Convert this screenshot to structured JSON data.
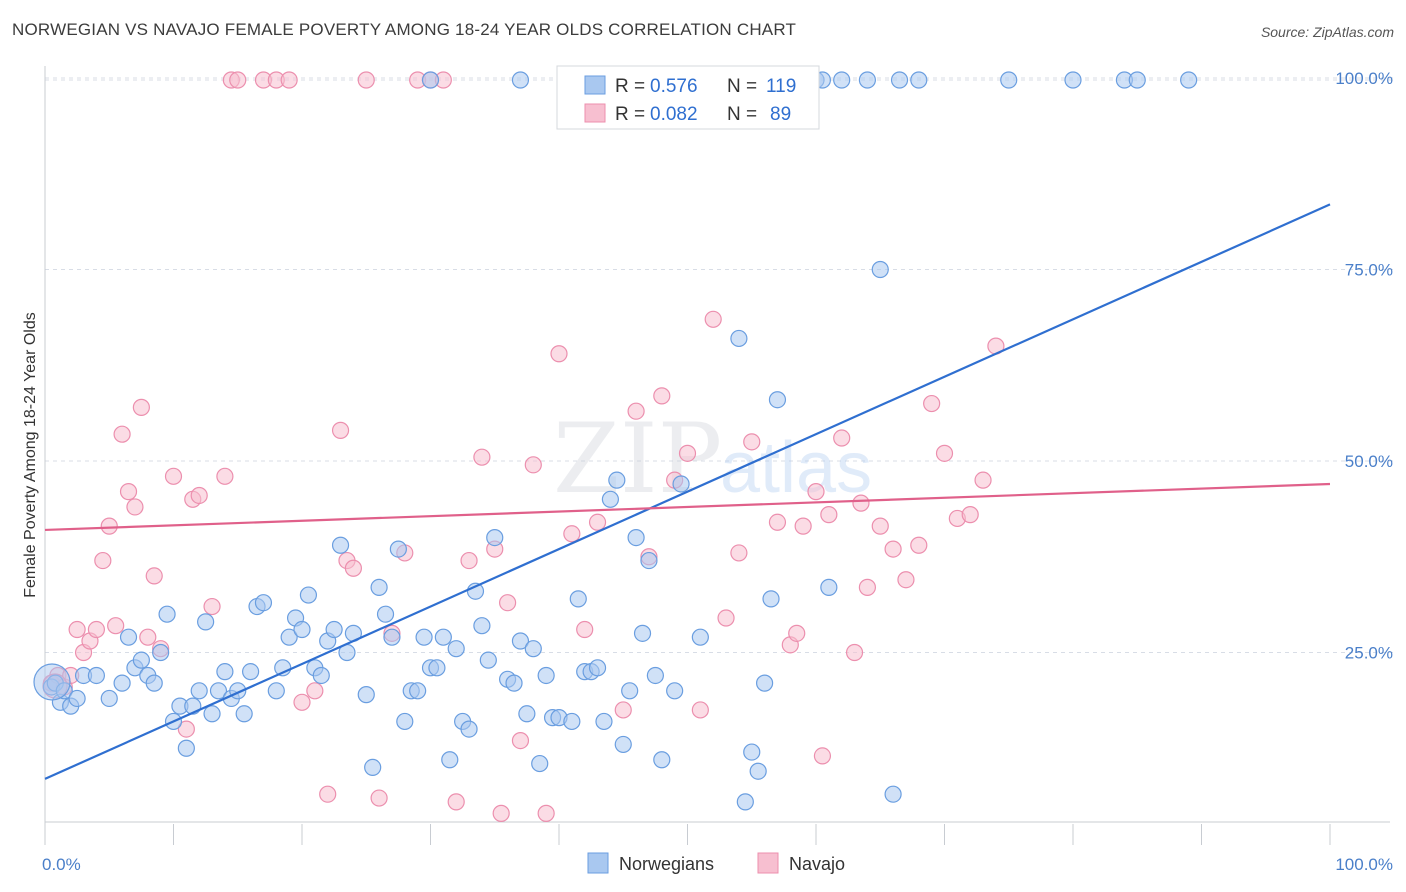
{
  "title": "NORWEGIAN VS NAVAJO FEMALE POVERTY AMONG 18-24 YEAR OLDS CORRELATION CHART",
  "source": "Source: ZipAtlas.com",
  "watermark": {
    "zip": "ZIP",
    "atlas": "atlas"
  },
  "colors": {
    "blue_fill": "#a9c8f0",
    "blue_stroke": "#6a9ee0",
    "blue_line": "#2f6fd0",
    "pink_fill": "#f7bfd0",
    "pink_stroke": "#ec8fae",
    "pink_line": "#e0608a",
    "grid": "#d8dde6",
    "axis_label": "#4a7fc9"
  },
  "legend_box": [
    {
      "r_label": "R =",
      "r_value": "0.576",
      "n_label": "N =",
      "n_value": "119",
      "series": "blue"
    },
    {
      "r_label": "R =",
      "r_value": "0.082",
      "n_label": "N =",
      "n_value": "89",
      "series": "pink"
    }
  ],
  "bottom_legend": [
    {
      "label": "Norwegians",
      "series": "blue"
    },
    {
      "label": "Navajo",
      "series": "pink"
    }
  ],
  "chart_data": {
    "type": "scatter",
    "title": "NORWEGIAN VS NAVAJO FEMALE POVERTY AMONG 18-24 YEAR OLDS CORRELATION CHART",
    "xlabel": "",
    "ylabel": "Female Poverty Among 18-24 Year Olds",
    "xlim": [
      0,
      100
    ],
    "ylim": [
      0,
      102
    ],
    "x_tick_labels": [
      "0.0%",
      "100.0%"
    ],
    "y_tick_labels": [
      "25.0%",
      "50.0%",
      "75.0%",
      "100.0%"
    ],
    "y_ticks": [
      25,
      50,
      75,
      100
    ],
    "grid": true,
    "legend": "top-center",
    "series": [
      {
        "name": "Norwegians",
        "color": "blue",
        "r": 0.576,
        "n": 119,
        "trend": {
          "x": [
            0,
            100
          ],
          "y": [
            8.5,
            83.5
          ]
        },
        "points": [
          [
            0.5,
            20.5
          ],
          [
            0.8,
            21
          ],
          [
            1.2,
            18.5
          ],
          [
            1.5,
            20
          ],
          [
            2,
            18
          ],
          [
            2.5,
            19
          ],
          [
            3,
            22
          ],
          [
            4,
            22
          ],
          [
            5,
            19
          ],
          [
            6,
            21
          ],
          [
            6.5,
            27
          ],
          [
            7,
            23
          ],
          [
            7.5,
            24
          ],
          [
            8,
            22
          ],
          [
            8.5,
            21
          ],
          [
            9,
            25
          ],
          [
            9.5,
            30
          ],
          [
            10,
            16
          ],
          [
            10.5,
            18
          ],
          [
            11,
            12.5
          ],
          [
            11.5,
            18
          ],
          [
            12,
            20
          ],
          [
            12.5,
            29
          ],
          [
            13,
            17
          ],
          [
            13.5,
            20
          ],
          [
            14,
            22.5
          ],
          [
            14.5,
            19
          ],
          [
            15,
            20
          ],
          [
            15.5,
            17
          ],
          [
            16,
            22.5
          ],
          [
            16.5,
            31
          ],
          [
            17,
            31.5
          ],
          [
            18,
            20
          ],
          [
            18.5,
            23
          ],
          [
            19,
            27
          ],
          [
            19.5,
            29.5
          ],
          [
            20,
            28
          ],
          [
            20.5,
            32.5
          ],
          [
            21,
            23
          ],
          [
            21.5,
            22
          ],
          [
            22,
            26.5
          ],
          [
            22.5,
            28
          ],
          [
            23,
            39
          ],
          [
            23.5,
            25
          ],
          [
            24,
            27.5
          ],
          [
            25,
            19.5
          ],
          [
            25.5,
            10
          ],
          [
            26,
            33.5
          ],
          [
            26.5,
            30
          ],
          [
            27,
            27
          ],
          [
            27.5,
            38.5
          ],
          [
            28,
            16
          ],
          [
            28.5,
            20
          ],
          [
            29,
            20
          ],
          [
            29.5,
            27
          ],
          [
            30,
            23
          ],
          [
            30.5,
            23
          ],
          [
            31,
            27
          ],
          [
            31.5,
            11
          ],
          [
            32,
            25.5
          ],
          [
            32.5,
            16
          ],
          [
            33,
            15
          ],
          [
            33.5,
            33
          ],
          [
            34,
            28.5
          ],
          [
            34.5,
            24
          ],
          [
            35,
            40
          ],
          [
            36,
            21.5
          ],
          [
            36.5,
            21
          ],
          [
            37,
            26.5
          ],
          [
            37.5,
            17
          ],
          [
            38,
            25.5
          ],
          [
            38.5,
            10.5
          ],
          [
            39,
            22
          ],
          [
            39.5,
            16.5
          ],
          [
            40,
            16.5
          ],
          [
            41,
            16
          ],
          [
            41.5,
            32
          ],
          [
            42,
            22.5
          ],
          [
            42.5,
            22.5
          ],
          [
            43,
            23
          ],
          [
            43.5,
            16
          ],
          [
            44,
            45
          ],
          [
            44.5,
            47.5
          ],
          [
            45,
            13
          ],
          [
            45.5,
            20
          ],
          [
            46,
            40
          ],
          [
            46.5,
            27.5
          ],
          [
            47,
            37
          ],
          [
            47.5,
            22
          ],
          [
            48,
            11
          ],
          [
            49,
            20
          ],
          [
            49.5,
            47
          ],
          [
            51,
            27
          ],
          [
            54,
            66
          ],
          [
            54.5,
            5.5
          ],
          [
            55,
            12
          ],
          [
            55.5,
            9.5
          ],
          [
            56,
            21
          ],
          [
            56.5,
            32
          ],
          [
            57,
            58
          ],
          [
            58,
            100
          ],
          [
            60,
            100
          ],
          [
            60.5,
            100
          ],
          [
            61,
            33.5
          ],
          [
            62,
            100
          ],
          [
            64,
            100
          ],
          [
            65,
            75
          ],
          [
            66,
            6.5
          ],
          [
            66.5,
            100
          ],
          [
            68,
            100
          ],
          [
            75,
            100
          ],
          [
            80,
            100
          ],
          [
            84,
            100
          ],
          [
            85,
            100
          ],
          [
            89,
            100
          ],
          [
            44,
            100
          ],
          [
            51,
            100
          ],
          [
            37,
            100
          ],
          [
            30,
            100
          ]
        ]
      },
      {
        "name": "Navajo",
        "color": "pink",
        "r": 0.082,
        "n": 89,
        "trend": {
          "x": [
            0,
            100
          ],
          "y": [
            41,
            47
          ]
        },
        "points": [
          [
            0.5,
            21
          ],
          [
            1,
            22
          ],
          [
            1.5,
            20.5
          ],
          [
            2,
            22
          ],
          [
            2.5,
            28
          ],
          [
            3,
            25
          ],
          [
            3.5,
            26.5
          ],
          [
            4,
            28
          ],
          [
            4.5,
            37
          ],
          [
            5,
            41.5
          ],
          [
            5.5,
            28.5
          ],
          [
            6,
            53.5
          ],
          [
            6.5,
            46
          ],
          [
            7,
            44
          ],
          [
            7.5,
            57
          ],
          [
            8,
            27
          ],
          [
            8.5,
            35
          ],
          [
            9,
            25.5
          ],
          [
            10,
            48
          ],
          [
            11,
            15
          ],
          [
            11.5,
            45
          ],
          [
            12,
            45.5
          ],
          [
            13,
            31
          ],
          [
            14,
            48
          ],
          [
            14.5,
            100
          ],
          [
            15,
            100
          ],
          [
            17,
            100
          ],
          [
            18,
            100
          ],
          [
            19,
            100
          ],
          [
            20,
            18.5
          ],
          [
            21,
            20
          ],
          [
            22,
            6.5
          ],
          [
            23,
            54
          ],
          [
            23.5,
            37
          ],
          [
            24,
            36
          ],
          [
            25,
            100
          ],
          [
            26,
            6
          ],
          [
            27,
            27.5
          ],
          [
            28,
            38
          ],
          [
            29,
            100
          ],
          [
            30,
            100
          ],
          [
            31,
            100
          ],
          [
            32,
            5.5
          ],
          [
            33,
            37
          ],
          [
            34,
            50.5
          ],
          [
            35,
            38.5
          ],
          [
            36,
            31.5
          ],
          [
            37,
            13.5
          ],
          [
            38,
            49.5
          ],
          [
            39,
            4
          ],
          [
            40,
            64
          ],
          [
            41,
            40.5
          ],
          [
            42,
            28
          ],
          [
            43,
            42
          ],
          [
            44,
            100
          ],
          [
            45,
            17.5
          ],
          [
            46,
            56.5
          ],
          [
            47,
            37.5
          ],
          [
            48,
            58.5
          ],
          [
            49,
            47.5
          ],
          [
            50,
            51
          ],
          [
            51,
            17.5
          ],
          [
            52,
            68.5
          ],
          [
            53,
            29.5
          ],
          [
            54,
            38
          ],
          [
            55,
            52.5
          ],
          [
            56,
            95
          ],
          [
            57,
            42
          ],
          [
            58,
            26
          ],
          [
            59,
            41.5
          ],
          [
            60,
            46
          ],
          [
            61,
            43
          ],
          [
            62,
            53
          ],
          [
            63,
            25
          ],
          [
            64,
            33.5
          ],
          [
            65,
            41.5
          ],
          [
            66,
            38.5
          ],
          [
            67,
            34.5
          ],
          [
            68,
            39
          ],
          [
            69,
            57.5
          ],
          [
            70,
            51
          ],
          [
            71,
            42.5
          ],
          [
            72,
            43
          ],
          [
            73,
            47.5
          ],
          [
            74,
            65
          ],
          [
            35.5,
            4
          ],
          [
            58.5,
            27.5
          ],
          [
            60.5,
            11.5
          ],
          [
            63.5,
            44.5
          ]
        ]
      }
    ]
  }
}
